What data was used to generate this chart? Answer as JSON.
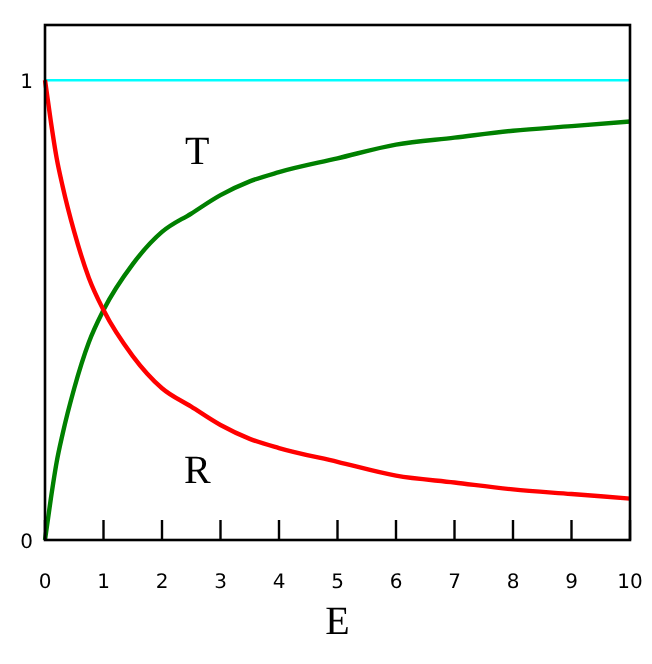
{
  "chart_data": {
    "type": "line",
    "xlabel": "E",
    "x": [
      0,
      0.1,
      0.2,
      0.3,
      0.5,
      0.75,
      1,
      1.5,
      2,
      2.5,
      3,
      3.5,
      4,
      5,
      6,
      7,
      8,
      9,
      10
    ],
    "series": [
      {
        "name": "T",
        "color": "#008000",
        "values": [
          0,
          0.09,
          0.17,
          0.23,
          0.33,
          0.43,
          0.5,
          0.6,
          0.67,
          0.71,
          0.75,
          0.78,
          0.8,
          0.83,
          0.86,
          0.875,
          0.89,
          0.9,
          0.91
        ]
      },
      {
        "name": "R",
        "color": "#ff0000",
        "values": [
          1,
          0.91,
          0.83,
          0.77,
          0.67,
          0.57,
          0.5,
          0.4,
          0.33,
          0.29,
          0.25,
          0.22,
          0.2,
          0.17,
          0.14,
          0.125,
          0.11,
          0.1,
          0.09
        ]
      }
    ],
    "ref_lines": [
      {
        "axis": "y",
        "value": 1,
        "color": "#00ffff"
      }
    ],
    "xlim": [
      0,
      10
    ],
    "ylim": [
      0,
      1.12
    ],
    "xticks": [
      0,
      1,
      2,
      3,
      4,
      5,
      6,
      7,
      8,
      9,
      10
    ],
    "yticks": [
      0,
      1
    ],
    "marker": "none",
    "line_style": "solid"
  }
}
